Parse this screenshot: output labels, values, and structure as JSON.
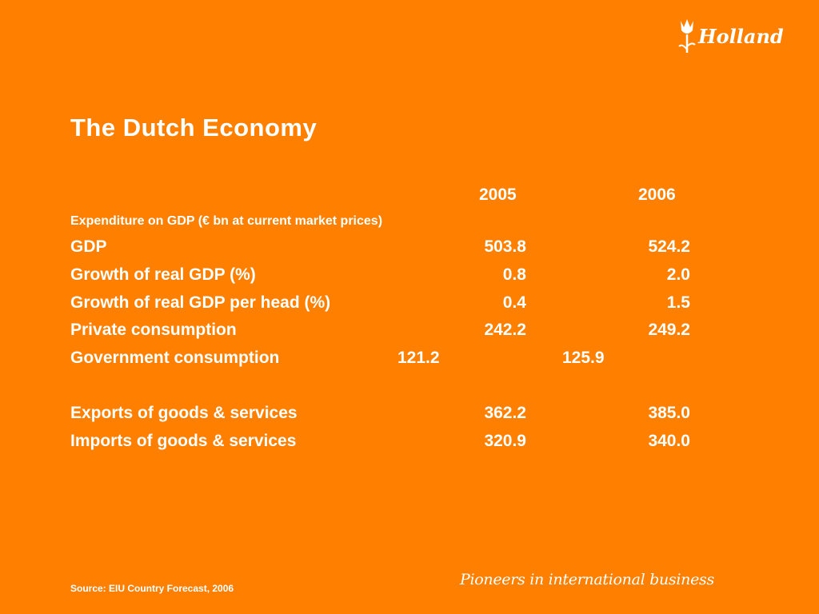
{
  "slide": {
    "title": "The Dutch Economy",
    "subheading": "Expenditure on GDP (€ bn at current market prices)",
    "years": [
      "2005",
      "2006"
    ],
    "rows": [
      {
        "label": "GDP",
        "v2005": "503.8",
        "v2006": "524.2"
      },
      {
        "label": "Growth of real GDP (%)",
        "v2005": "0.8",
        "v2006": "2.0"
      },
      {
        "label": "Growth of real GDP per head (%)",
        "v2005": "0.4",
        "v2006": "1.5"
      },
      {
        "label": "Private consumption",
        "v2005": "242.2",
        "v2006": "249.2"
      },
      {
        "label": "Government consumption",
        "v2005": "121.2",
        "v2006": "125.9"
      },
      {
        "label": "Exports of goods & services",
        "v2005": "362.2",
        "v2006": "385.0"
      },
      {
        "label": "Imports of goods & services",
        "v2005": "320.9",
        "v2006": "340.0"
      }
    ],
    "source": "Source: EIU Country Forecast, 2006",
    "tagline": "Pioneers in international business",
    "logo_text": "Holland"
  },
  "colors": {
    "background": "#FF8000",
    "text": "#FFFFFF"
  }
}
